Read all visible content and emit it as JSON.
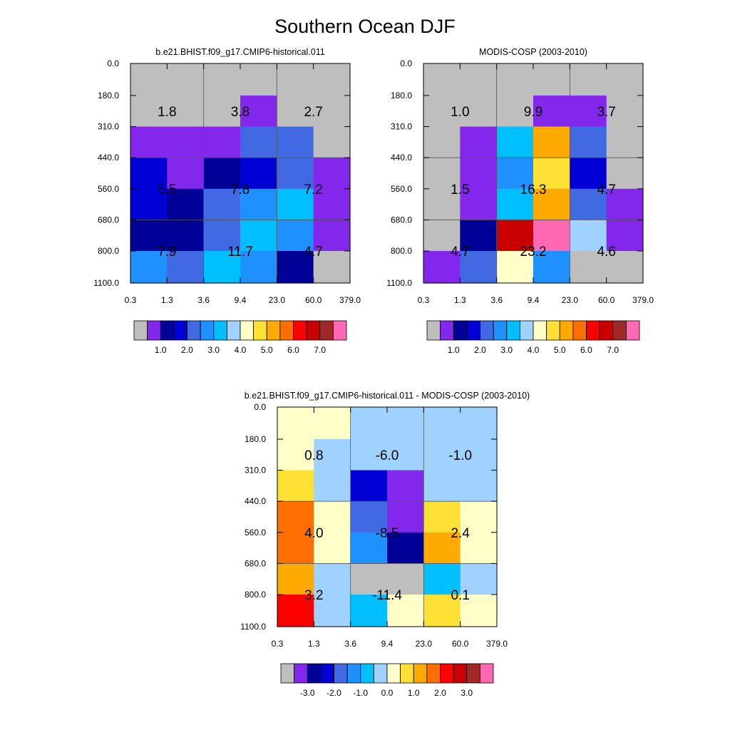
{
  "title": "Southern Ocean DJF",
  "x_tick_labels": [
    "0.3",
    "1.3",
    "3.6",
    "9.4",
    "23.0",
    "60.0",
    "379.0"
  ],
  "y_tick_labels": [
    "0.0",
    "180.0",
    "310.0",
    "440.0",
    "560.0",
    "680.0",
    "800.0",
    "1100.0"
  ],
  "colors": {
    "missing": "#BEBEBE",
    "levels": [
      "#8327ED",
      "#000097",
      "#0000D4",
      "#4169E1",
      "#1E90FF",
      "#00BFFF",
      "#A0D2FF",
      "#FFFFC8",
      "#FFE135",
      "#FFAA00",
      "#FF6E00",
      "#FF0000",
      "#C80000",
      "#A02828",
      "#FF69B4"
    ]
  },
  "chart_data": [
    {
      "type": "heatmap",
      "title": "b.e21.BHIST.f09_g17.CMIP6-historical.011",
      "colorbar_labels": [
        "1.0",
        "2.0",
        "3.0",
        "4.0",
        "5.0",
        "6.0",
        "7.0"
      ],
      "cells": [
        [
          -1,
          -1,
          -1,
          -1,
          -1,
          -1
        ],
        [
          -1,
          -1,
          -1,
          0,
          -1,
          -1
        ],
        [
          0,
          0,
          0,
          3,
          3,
          -1
        ],
        [
          2,
          0,
          1,
          2,
          3,
          0
        ],
        [
          2,
          1,
          3,
          4,
          5,
          0
        ],
        [
          1,
          1,
          3,
          5,
          4,
          0
        ],
        [
          4,
          3,
          5,
          4,
          1,
          -1
        ]
      ],
      "annotations": [
        [
          "1.8",
          "3.8",
          "2.7"
        ],
        [
          "5.5",
          "7.8",
          "7.2"
        ],
        [
          "7.9",
          "11.7",
          "4.7"
        ]
      ]
    },
    {
      "type": "heatmap",
      "title": "MODIS-COSP (2003-2010)",
      "colorbar_labels": [
        "1.0",
        "2.0",
        "3.0",
        "4.0",
        "5.0",
        "6.0",
        "7.0"
      ],
      "cells": [
        [
          -1,
          -1,
          -1,
          -1,
          -1,
          -1
        ],
        [
          -1,
          -1,
          -1,
          0,
          0,
          -1
        ],
        [
          -1,
          0,
          5,
          9,
          3,
          -1
        ],
        [
          -1,
          0,
          4,
          8,
          2,
          -1
        ],
        [
          -1,
          0,
          5,
          9,
          3,
          0
        ],
        [
          -1,
          1,
          12,
          14,
          6,
          0
        ],
        [
          0,
          3,
          7,
          4,
          -1,
          -1
        ]
      ],
      "annotations": [
        [
          "1.0",
          "9.9",
          "3.7"
        ],
        [
          "1.5",
          "16.3",
          "4.7"
        ],
        [
          "4.7",
          "23.2",
          "4.6"
        ]
      ]
    },
    {
      "type": "heatmap",
      "title": "b.e21.BHIST.f09_g17.CMIP6-historical.011 - MODIS-COSP (2003-2010)",
      "colorbar_labels": [
        "-3.0",
        "-2.0",
        "-1.0",
        "0.0",
        "1.0",
        "2.0",
        "3.0"
      ],
      "cells": [
        [
          7,
          7,
          6,
          6,
          6,
          6
        ],
        [
          7,
          6,
          6,
          6,
          6,
          6
        ],
        [
          8,
          6,
          2,
          0,
          6,
          6
        ],
        [
          10,
          7,
          3,
          0,
          8,
          7
        ],
        [
          10,
          7,
          4,
          1,
          9,
          7
        ],
        [
          9,
          6,
          -1,
          -1,
          5,
          6
        ],
        [
          11,
          6,
          5,
          7,
          8,
          7
        ]
      ],
      "annotations": [
        [
          "0.8",
          "-6.0",
          "-1.0"
        ],
        [
          "4.0",
          "-8.5",
          "2.4"
        ],
        [
          "3.2",
          "-11.4",
          "0.1"
        ]
      ]
    }
  ]
}
